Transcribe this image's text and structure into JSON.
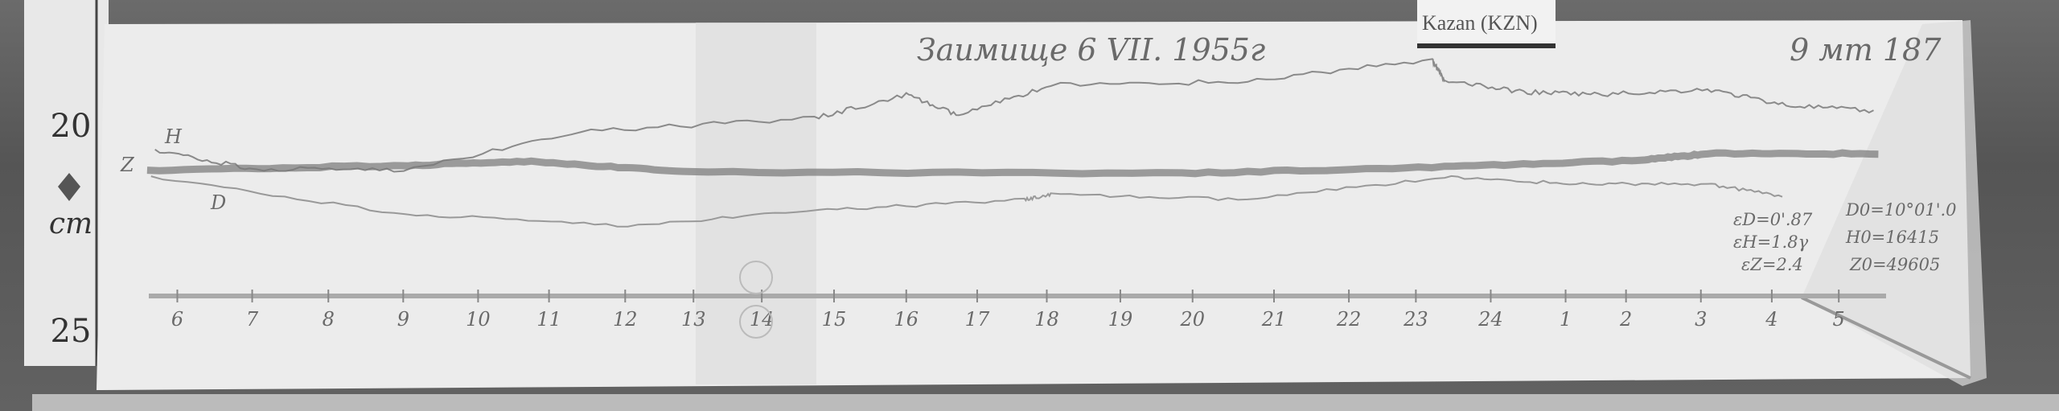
{
  "ruler": {
    "marks": [
      "20",
      "cm",
      "25"
    ]
  },
  "station_label": "Kazan (KZN)",
  "title_handwritten": "Заимище 6 VII. 1955г",
  "sheet_number": "9 мт 187",
  "trace_labels": {
    "h": "H",
    "z": "Z",
    "d": "D"
  },
  "hour_ticks": [
    "6",
    "7",
    "8",
    "9",
    "10",
    "11",
    "12",
    "13",
    "14",
    "15",
    "16",
    "17",
    "18",
    "19",
    "20",
    "21",
    "22",
    "23",
    "24",
    "1",
    "2",
    "3",
    "4",
    "5"
  ],
  "scale_values": [
    "εD=0'.87",
    "εH=1.8γ",
    "εZ=2.4"
  ],
  "base_values": [
    "D0=10°01'.0",
    "H0=16415",
    "Z0=49605"
  ],
  "colors": {
    "paper": "#ececec",
    "trace": "#8a8a8a",
    "background": "#5a5a5a"
  }
}
